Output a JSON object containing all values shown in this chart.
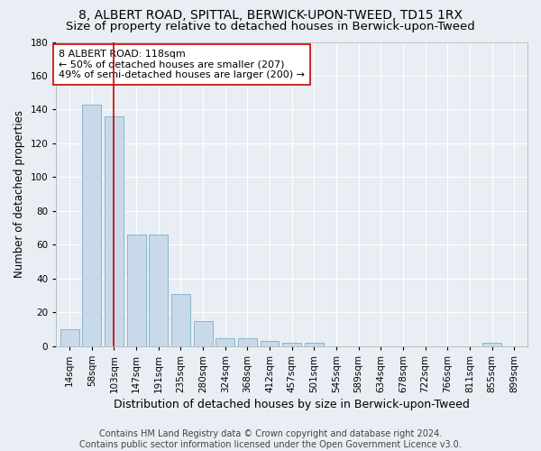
{
  "title": "8, ALBERT ROAD, SPITTAL, BERWICK-UPON-TWEED, TD15 1RX",
  "subtitle": "Size of property relative to detached houses in Berwick-upon-Tweed",
  "xlabel": "Distribution of detached houses by size in Berwick-upon-Tweed",
  "ylabel": "Number of detached properties",
  "bar_color": "#c8daea",
  "bar_edgecolor": "#7baec8",
  "categories": [
    "14sqm",
    "58sqm",
    "103sqm",
    "147sqm",
    "191sqm",
    "235sqm",
    "280sqm",
    "324sqm",
    "368sqm",
    "412sqm",
    "457sqm",
    "501sqm",
    "545sqm",
    "589sqm",
    "634sqm",
    "678sqm",
    "722sqm",
    "766sqm",
    "811sqm",
    "855sqm",
    "899sqm"
  ],
  "values": [
    10,
    143,
    136,
    66,
    66,
    31,
    15,
    5,
    5,
    3,
    2,
    2,
    0,
    0,
    0,
    0,
    0,
    0,
    0,
    2,
    0
  ],
  "ylim": [
    0,
    180
  ],
  "yticks": [
    0,
    20,
    40,
    60,
    80,
    100,
    120,
    140,
    160,
    180
  ],
  "vline_x": 2.0,
  "vline_color": "#cc0000",
  "annotation_line1": "8 ALBERT ROAD: 118sqm",
  "annotation_line2": "← 50% of detached houses are smaller (207)",
  "annotation_line3": "49% of semi-detached houses are larger (200) →",
  "annotation_box_color": "#ffffff",
  "annotation_box_edgecolor": "#cc0000",
  "footer_line1": "Contains HM Land Registry data © Crown copyright and database right 2024.",
  "footer_line2": "Contains public sector information licensed under the Open Government Licence v3.0.",
  "background_color": "#e8eef4",
  "plot_background_color": "#e8eef4",
  "grid_color": "#ffffff",
  "title_fontsize": 10,
  "subtitle_fontsize": 9.5,
  "xlabel_fontsize": 9,
  "ylabel_fontsize": 8.5,
  "tick_fontsize": 7.5,
  "annotation_fontsize": 8,
  "footer_fontsize": 7
}
